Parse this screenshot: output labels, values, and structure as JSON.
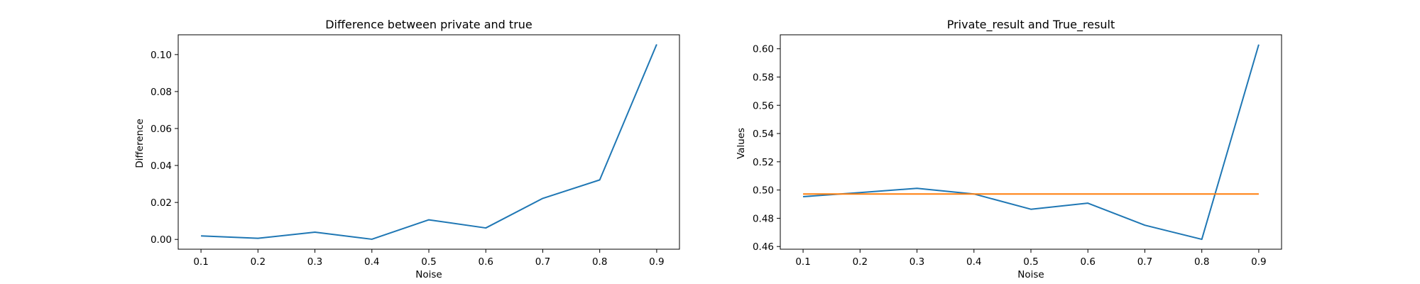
{
  "chart_data": [
    {
      "type": "line",
      "title": "Difference between private and true",
      "xlabel": "Noise",
      "ylabel": "Difference",
      "x": [
        0.1,
        0.2,
        0.3,
        0.4,
        0.5,
        0.6,
        0.7,
        0.8,
        0.9
      ],
      "xticks": [
        "0.1",
        "0.2",
        "0.3",
        "0.4",
        "0.5",
        "0.6",
        "0.7",
        "0.8",
        "0.9"
      ],
      "yticks": [
        "0.00",
        "0.02",
        "0.04",
        "0.06",
        "0.08",
        "0.10"
      ],
      "xlim": [
        0.06,
        0.94
      ],
      "ylim": [
        -0.0053,
        0.1107
      ],
      "grid": false,
      "series": [
        {
          "color": "#1f77b4",
          "values": [
            0.0019,
            0.0006,
            0.0039,
            0.0001,
            0.0106,
            0.0062,
            0.0222,
            0.0322,
            0.1055
          ]
        }
      ]
    },
    {
      "type": "line",
      "title": "Private_result and True_result",
      "xlabel": "Noise",
      "ylabel": "Values",
      "x": [
        0.1,
        0.2,
        0.3,
        0.4,
        0.5,
        0.6,
        0.7,
        0.8,
        0.9
      ],
      "xticks": [
        "0.1",
        "0.2",
        "0.3",
        "0.4",
        "0.5",
        "0.6",
        "0.7",
        "0.8",
        "0.9"
      ],
      "yticks": [
        "0.46",
        "0.48",
        "0.50",
        "0.52",
        "0.54",
        "0.56",
        "0.58",
        "0.60"
      ],
      "xlim": [
        0.06,
        0.94
      ],
      "ylim": [
        0.4581,
        0.6099
      ],
      "grid": false,
      "series": [
        {
          "color": "#1f77b4",
          "values": [
            0.4953,
            0.4982,
            0.5012,
            0.4972,
            0.4864,
            0.4907,
            0.4751,
            0.4651,
            0.603
          ]
        },
        {
          "color": "#ff7f0e",
          "values": [
            0.4972,
            0.4972,
            0.4972,
            0.4972,
            0.4972,
            0.4972,
            0.4972,
            0.4972,
            0.4972
          ]
        }
      ]
    }
  ]
}
